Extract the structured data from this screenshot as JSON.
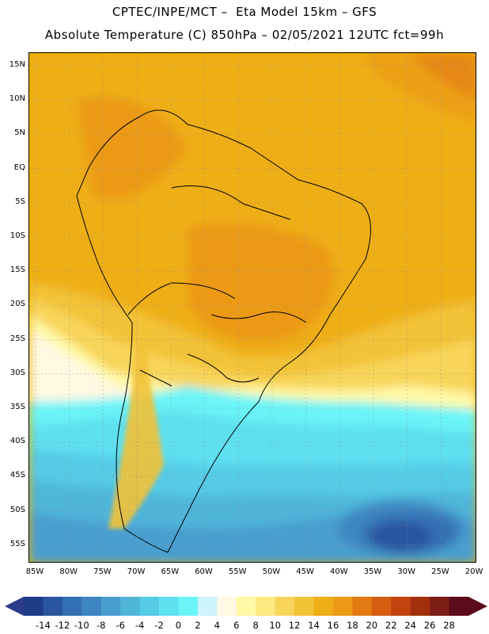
{
  "header": {
    "line1": "CPTEC/INPE/MCT –  Eta Model 15km – GFS",
    "line2": "Absolute Temperature (C) 850hPa – 02/05/2021 12UTC fct=99h"
  },
  "map": {
    "lat_labels": [
      "15N",
      "10N",
      "5N",
      "EQ",
      "5S",
      "10S",
      "15S",
      "20S",
      "25S",
      "30S",
      "35S",
      "40S",
      "45S",
      "50S",
      "55S"
    ],
    "lon_labels": [
      "85W",
      "80W",
      "75W",
      "70W",
      "65W",
      "60W",
      "55W",
      "50W",
      "45W",
      "40W",
      "35W",
      "30W",
      "25W",
      "20W"
    ],
    "grid": "dotted"
  },
  "colorbar": {
    "labels": [
      "-14",
      "-12",
      "-10",
      "-8",
      "-6",
      "-4",
      "-2",
      "0",
      "2",
      "4",
      "6",
      "8",
      "10",
      "12",
      "14",
      "16",
      "18",
      "20",
      "22",
      "24",
      "26",
      "28"
    ],
    "colors": [
      "#1f3c88",
      "#2a559f",
      "#3470b4",
      "#3d86c2",
      "#4a9ecf",
      "#4fb5d9",
      "#55cbe6",
      "#5fe0f0",
      "#6bf4f8",
      "#cdf3fb",
      "#fff8e2",
      "#fff9a8",
      "#fde97f",
      "#f8d55a",
      "#f2c237",
      "#eeae15",
      "#ec9a16",
      "#e47a14",
      "#d55d10",
      "#c2430e",
      "#a3300d",
      "#7c1e16",
      "#5c0b1a"
    ]
  }
}
